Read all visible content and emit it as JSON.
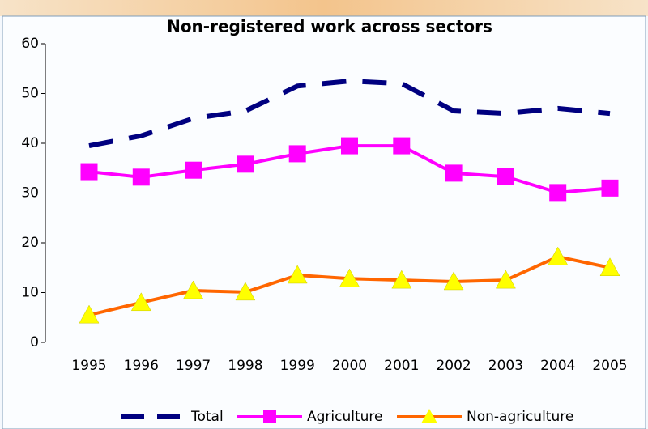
{
  "chart_data": {
    "type": "line",
    "title": "Non-registered work across sectors",
    "categories": [
      "1995",
      "1996",
      "1997",
      "1998",
      "1999",
      "2000",
      "2001",
      "2002",
      "2003",
      "2004",
      "2005"
    ],
    "series": [
      {
        "name": "Total",
        "color": "#000080",
        "line_style": "dashed",
        "marker": "none",
        "values": [
          39.5,
          41.5,
          45,
          46.5,
          51.5,
          52.5,
          52,
          46.5,
          46,
          47,
          46
        ]
      },
      {
        "name": "Agriculture",
        "color": "#ff00ff",
        "line_style": "solid",
        "marker": "square",
        "marker_color": "#ff00ff",
        "values": [
          34.3,
          33.2,
          34.6,
          35.8,
          37.9,
          39.5,
          39.5,
          34,
          33.3,
          30.1,
          31
        ]
      },
      {
        "name": "Non-agriculture",
        "color": "#ff6600",
        "line_style": "solid",
        "marker": "triangle",
        "marker_color": "#ffff00",
        "values": [
          5.5,
          8,
          10.4,
          10.1,
          13.5,
          12.8,
          12.5,
          12.2,
          12.5,
          17.2,
          15
        ]
      }
    ],
    "ylim": [
      0,
      60
    ],
    "yticks": [
      0,
      10,
      20,
      30,
      40,
      50,
      60
    ],
    "grid": false,
    "legend": "bottom"
  }
}
